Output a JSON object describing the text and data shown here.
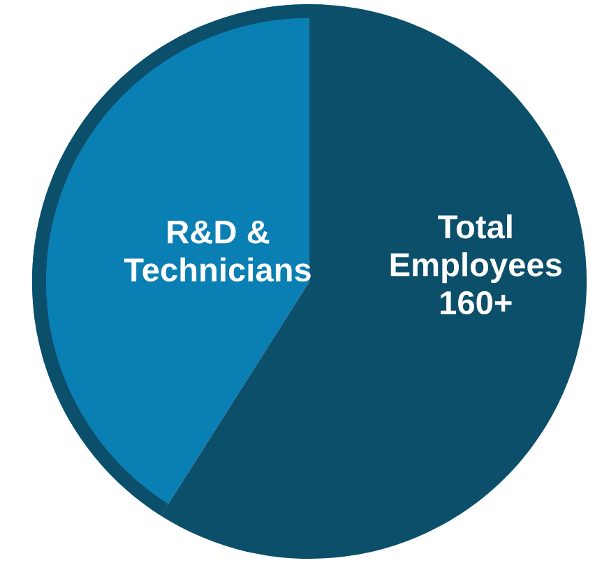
{
  "chart_data": {
    "type": "pie",
    "categories": [
      "R&D &\nTechnicians",
      "Total\nEmployees\n160+"
    ],
    "values": [
      41,
      59
    ],
    "colors": [
      "#0a7fb3",
      "#0b4f6b"
    ]
  }
}
